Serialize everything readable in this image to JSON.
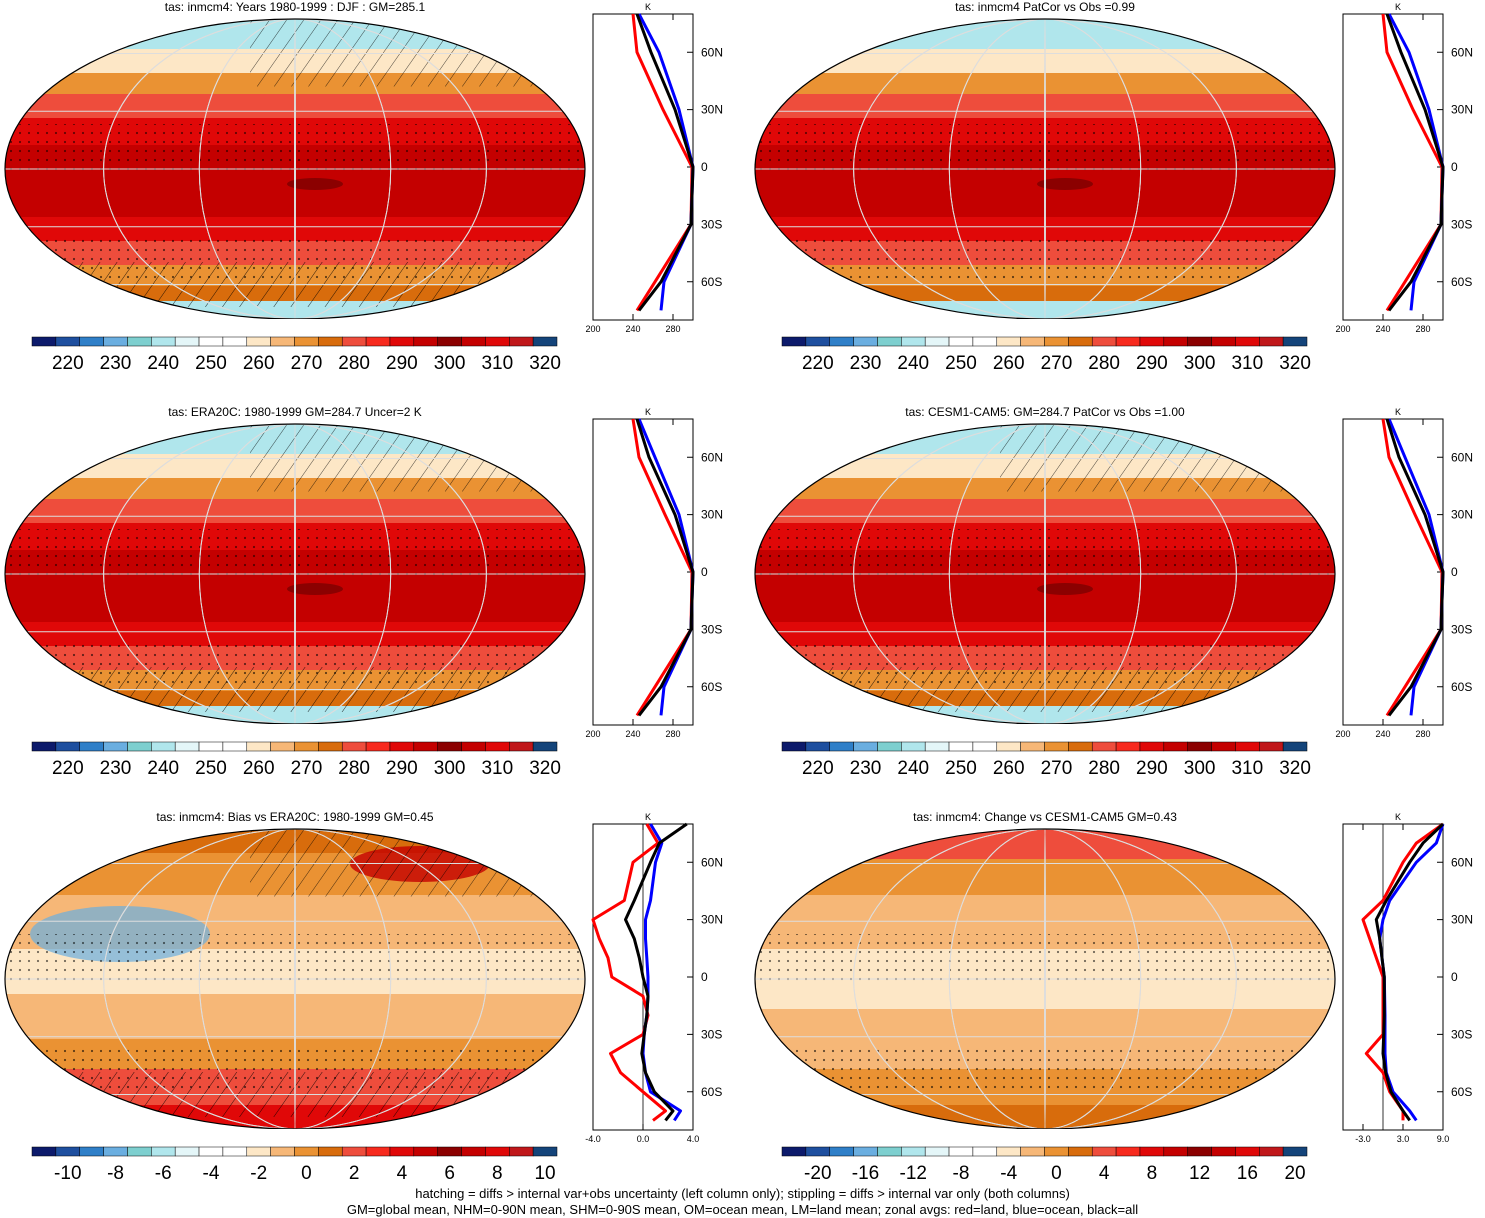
{
  "palette": {
    "abs": [
      "#0c1a6b",
      "#1e4f9f",
      "#2f7fc8",
      "#6aaee0",
      "#7dcfcf",
      "#b0e6ec",
      "#e4f6f8",
      "#ffffff",
      "#ffffff",
      "#fde7c6",
      "#f6b777",
      "#ea9233",
      "#d86c0c",
      "#ee4d3c",
      "#f72a1e",
      "#e00808",
      "#c40000",
      "#8b0000",
      "#c40000",
      "#e00808",
      "#c0171a",
      "#14447a"
    ],
    "diff": [
      "#0c1a6b",
      "#1e4f9f",
      "#2f7fc8",
      "#6aaee0",
      "#7dcfcf",
      "#b0e6ec",
      "#e4f6f8",
      "#ffffff",
      "#ffffff",
      "#fde7c6",
      "#f6b777",
      "#ea9233",
      "#d86c0c",
      "#ee4d3c",
      "#f72a1e",
      "#e00808",
      "#c40000",
      "#8b0000",
      "#c40000",
      "#e00808",
      "#c0171a",
      "#14447a"
    ],
    "land_color": "#ff0000",
    "ocean_color": "#0000ff",
    "all_color": "#000000",
    "map_grid_color": "#dddddd"
  },
  "lat_labels": [
    "60N",
    "30N",
    "0",
    "30S",
    "60S"
  ],
  "footer": {
    "line1": "hatching = diffs > internal var+obs uncertainty (left column only); stippling = diffs > internal var only (both columns)",
    "line2": "GM=global mean, NHM=0-90N mean, SHM=0-90S mean, OM=ocean mean, LM=land mean; zonal avgs: red=land, blue=ocean, black=all"
  },
  "panels": [
    {
      "title": "tas: inmcm4: Years 1980-1999 : DJF : GM=285.1",
      "kind": "abs",
      "zonal_unit": "K",
      "zonal_ticks": [
        "200",
        "240",
        "280"
      ],
      "cbar_labels": [
        "220",
        "230",
        "240",
        "250",
        "260",
        "270",
        "280",
        "290",
        "300",
        "310",
        "320"
      ],
      "hatching": true
    },
    {
      "title": "tas: inmcm4 PatCor vs Obs =0.99",
      "kind": "abs",
      "zonal_unit": "K",
      "zonal_ticks": [
        "200",
        "240",
        "280"
      ],
      "cbar_labels": [
        "220",
        "230",
        "240",
        "250",
        "260",
        "270",
        "280",
        "290",
        "300",
        "310",
        "320"
      ],
      "hatching": false
    },
    {
      "title": "tas: ERA20C: 1980-1999 GM=284.7 Uncer=2 K",
      "kind": "abs",
      "zonal_unit": "K",
      "zonal_ticks": [
        "200",
        "240",
        "280"
      ],
      "cbar_labels": [
        "220",
        "230",
        "240",
        "250",
        "260",
        "270",
        "280",
        "290",
        "300",
        "310",
        "320"
      ],
      "hatching": true
    },
    {
      "title": "tas: CESM1-CAM5: GM=284.7 PatCor vs Obs =1.00",
      "kind": "abs",
      "zonal_unit": "K",
      "zonal_ticks": [
        "200",
        "240",
        "280"
      ],
      "cbar_labels": [
        "220",
        "230",
        "240",
        "250",
        "260",
        "270",
        "280",
        "290",
        "300",
        "310",
        "320"
      ],
      "hatching": true
    },
    {
      "title": "tas: inmcm4: Bias vs ERA20C: 1980-1999 GM=0.45",
      "kind": "diff",
      "zonal_unit": "K",
      "zonal_ticks": [
        "-4.0",
        "0.0",
        "4.0"
      ],
      "cbar_labels": [
        "-10",
        "-8",
        "-6",
        "-4",
        "-2",
        "0",
        "2",
        "4",
        "6",
        "8",
        "10"
      ],
      "hatching": true
    },
    {
      "title": "tas: inmcm4: Change vs CESM1-CAM5 GM=0.43",
      "kind": "diff",
      "zonal_unit": "K",
      "zonal_ticks": [
        "-3.0",
        "3.0",
        "9.0"
      ],
      "cbar_labels": [
        "-20",
        "-16",
        "-12",
        "-8",
        "-4",
        "0",
        "4",
        "8",
        "12",
        "16",
        "20"
      ],
      "hatching": false
    }
  ],
  "chart_data": [
    {
      "type": "heatmap",
      "title": "tas: inmcm4: Years 1980-1999 : DJF : GM=285.1",
      "colorbar": [
        220,
        230,
        240,
        250,
        260,
        270,
        280,
        290,
        300,
        310,
        320
      ],
      "zonal_mean": {
        "lat": [
          80,
          60,
          30,
          0,
          -30,
          -60,
          -75
        ],
        "land": [
          240,
          244,
          270,
          299,
          298,
          262,
          244
        ],
        "ocean": [
          246,
          266,
          286,
          300,
          298,
          271,
          268
        ],
        "all": [
          244,
          258,
          282,
          300,
          298,
          268,
          246
        ]
      }
    },
    {
      "type": "heatmap",
      "title": "tas: inmcm4 PatCor vs Obs =0.99",
      "colorbar": [
        220,
        230,
        240,
        250,
        260,
        270,
        280,
        290,
        300,
        310,
        320
      ],
      "zonal_mean": {
        "lat": [
          80,
          60,
          30,
          0,
          -30,
          -60,
          -75
        ],
        "land": [
          240,
          244,
          270,
          299,
          298,
          262,
          244
        ],
        "ocean": [
          246,
          266,
          286,
          300,
          298,
          271,
          268
        ],
        "all": [
          244,
          258,
          282,
          300,
          298,
          268,
          246
        ]
      }
    },
    {
      "type": "heatmap",
      "title": "tas: ERA20C: 1980-1999 GM=284.7 Uncer=2 K",
      "colorbar": [
        220,
        230,
        240,
        250,
        260,
        270,
        280,
        290,
        300,
        310,
        320
      ],
      "zonal_mean": {
        "lat": [
          80,
          60,
          30,
          0,
          -30,
          -60,
          -75
        ],
        "land": [
          240,
          246,
          272,
          299,
          298,
          262,
          244
        ],
        "ocean": [
          246,
          262,
          286,
          300,
          298,
          271,
          268
        ],
        "all": [
          244,
          256,
          282,
          300,
          298,
          268,
          246
        ]
      }
    },
    {
      "type": "heatmap",
      "title": "tas: CESM1-CAM5: GM=284.7 PatCor vs Obs =1.00",
      "colorbar": [
        220,
        230,
        240,
        250,
        260,
        270,
        280,
        290,
        300,
        310,
        320
      ],
      "zonal_mean": {
        "lat": [
          80,
          60,
          30,
          0,
          -30,
          -60,
          -75
        ],
        "land": [
          240,
          246,
          272,
          299,
          298,
          262,
          244
        ],
        "ocean": [
          246,
          262,
          286,
          300,
          298,
          271,
          268
        ],
        "all": [
          244,
          256,
          282,
          300,
          298,
          268,
          246
        ]
      }
    },
    {
      "type": "heatmap",
      "title": "tas: inmcm4: Bias vs ERA20C: 1980-1999 GM=0.45",
      "colorbar": [
        -10,
        -8,
        -6,
        -4,
        -2,
        0,
        2,
        4,
        6,
        8,
        10
      ],
      "zonal_mean": {
        "lat": [
          80,
          70,
          60,
          40,
          30,
          20,
          10,
          0,
          -10,
          -20,
          -30,
          -40,
          -50,
          -60,
          -70,
          -75
        ],
        "land": [
          0.3,
          1.2,
          -0.8,
          -1.5,
          -4.0,
          -3.5,
          -2.8,
          -2.5,
          0.0,
          0.4,
          0.0,
          -2.6,
          -1.8,
          0.0,
          1.8,
          0.8
        ],
        "ocean": [
          0.6,
          1.5,
          1.0,
          0.6,
          0.2,
          0.2,
          0.3,
          0.4,
          0.4,
          0.3,
          0.1,
          0.0,
          0.2,
          0.6,
          3.0,
          2.5
        ],
        "all": [
          3.5,
          1.3,
          0.6,
          -0.7,
          -1.4,
          -0.7,
          -0.3,
          0.0,
          0.4,
          0.3,
          0.1,
          -0.1,
          0.2,
          0.9,
          2.4,
          1.8
        ]
      }
    },
    {
      "type": "heatmap",
      "title": "tas: inmcm4: Change vs CESM1-CAM5 GM=0.43",
      "colorbar": [
        -20,
        -16,
        -12,
        -8,
        -4,
        0,
        4,
        8,
        12,
        16,
        20
      ],
      "zonal_mean": {
        "lat": [
          80,
          70,
          60,
          40,
          30,
          20,
          0,
          -20,
          -30,
          -40,
          -50,
          -60,
          -70,
          -75
        ],
        "land": [
          9,
          5,
          3,
          0,
          -3,
          -2,
          0,
          0,
          0,
          -2.5,
          0,
          1,
          3,
          3
        ],
        "ocean": [
          9,
          8,
          5,
          1,
          0,
          -0.5,
          0.2,
          0.3,
          0.3,
          0.3,
          0.5,
          1.5,
          4,
          5
        ],
        "all": [
          9,
          6,
          4,
          0.5,
          -1,
          -0.5,
          0.2,
          0.2,
          0.1,
          0,
          0.4,
          1.2,
          3,
          4
        ]
      }
    }
  ]
}
